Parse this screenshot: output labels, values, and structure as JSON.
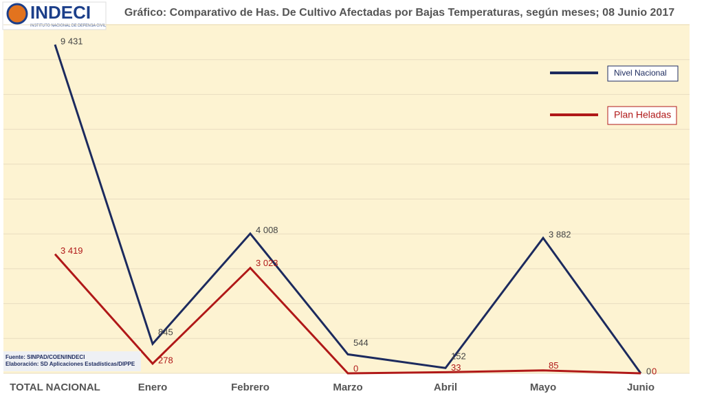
{
  "logo": {
    "name": "INDECI",
    "subtitle": "INSTITUTO NACIONAL DE DEFENSA CIVIL"
  },
  "chart_data": {
    "type": "line",
    "title": "Gráfico:  Comparativo de Has. De Cultivo Afectadas por Bajas Temperaturas, según meses; 08 Junio 2017",
    "categories": [
      "TOTAL NACIONAL",
      "Enero",
      "Febrero",
      "Marzo",
      "Abril",
      "Mayo",
      "Junio"
    ],
    "series": [
      {
        "name": "Nivel Nacional",
        "color": "#1c2a5e",
        "values": [
          9431,
          845,
          4008,
          544,
          152,
          3882,
          0
        ],
        "value_labels": [
          "9 431",
          "845",
          "4 008",
          "544",
          "152",
          "3 882",
          "0"
        ]
      },
      {
        "name": "Plan Heladas",
        "color": "#b01818",
        "values": [
          3419,
          278,
          3023,
          0,
          33,
          85,
          0
        ],
        "value_labels": [
          "3 419",
          "278",
          "3 023",
          "0",
          "33",
          "85",
          "0"
        ]
      }
    ],
    "ylim": [
      0,
      10000
    ],
    "yticks": [
      0,
      1000,
      2000,
      3000,
      4000,
      5000,
      6000,
      7000,
      8000,
      9000,
      10000
    ],
    "grid": true,
    "legend": "right",
    "footnotes": [
      "Fuente: SINPAD/COEN/INDECI",
      "Elaboración: SD Aplicaciones Estadísticas/DIPPE"
    ]
  }
}
